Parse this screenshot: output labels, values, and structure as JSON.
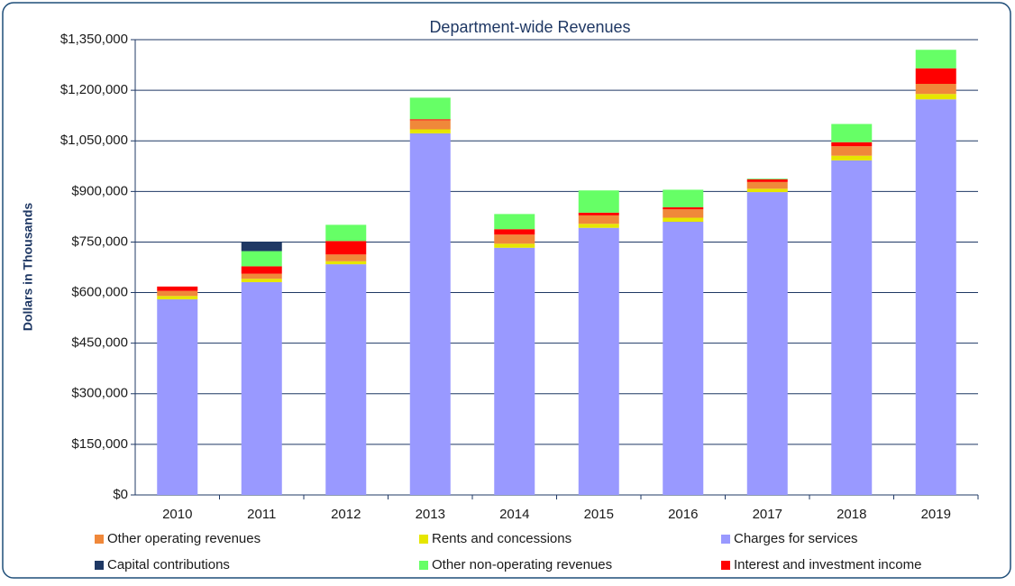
{
  "chart_data": {
    "type": "stacked_bar",
    "title": "Department-wide Revenues",
    "y_label": "Dollars in Thousands",
    "categories": [
      "2010",
      "2011",
      "2012",
      "2013",
      "2014",
      "2015",
      "2016",
      "2017",
      "2018",
      "2019"
    ],
    "series": [
      {
        "name": "Charges for services",
        "color": "#9999ff",
        "values": [
          580000,
          631000,
          684000,
          1072000,
          733000,
          792000,
          810000,
          898000,
          992000,
          1173000
        ]
      },
      {
        "name": "Rents and concessions",
        "color": "#e6e600",
        "values": [
          10000,
          10000,
          9000,
          12000,
          12000,
          12000,
          12000,
          10000,
          14000,
          16000
        ]
      },
      {
        "name": "Other operating revenues",
        "color": "#f0883a",
        "values": [
          15000,
          15000,
          20000,
          27000,
          27000,
          25000,
          25000,
          20000,
          28000,
          30000
        ]
      },
      {
        "name": "Interest and investment income",
        "color": "#ff0000",
        "values": [
          13000,
          22000,
          40000,
          3000,
          16000,
          8000,
          6000,
          8000,
          12000,
          46000
        ]
      },
      {
        "name": "Other non-operating revenues",
        "color": "#66ff66",
        "values": [
          0,
          45000,
          48000,
          64000,
          45000,
          66000,
          52000,
          2000,
          54000,
          55000
        ]
      },
      {
        "name": "Capital contributions",
        "color": "#1f3864",
        "values": [
          0,
          27000,
          0,
          0,
          0,
          0,
          0,
          0,
          0,
          0
        ]
      }
    ],
    "ylim": [
      0,
      1350000
    ],
    "yticks": [
      {
        "value": 0,
        "label": "$0"
      },
      {
        "value": 150000,
        "label": "$150,000"
      },
      {
        "value": 300000,
        "label": "$300,000"
      },
      {
        "value": 450000,
        "label": "$450,000"
      },
      {
        "value": 600000,
        "label": "$600,000"
      },
      {
        "value": 750000,
        "label": "$750,000"
      },
      {
        "value": 900000,
        "label": "$900,000"
      },
      {
        "value": 1050000,
        "label": "$1,050,000"
      },
      {
        "value": 1200000,
        "label": "$1,200,000"
      },
      {
        "value": 1350000,
        "label": "$1,350,000"
      }
    ],
    "grid": true,
    "legend": "bottom"
  }
}
